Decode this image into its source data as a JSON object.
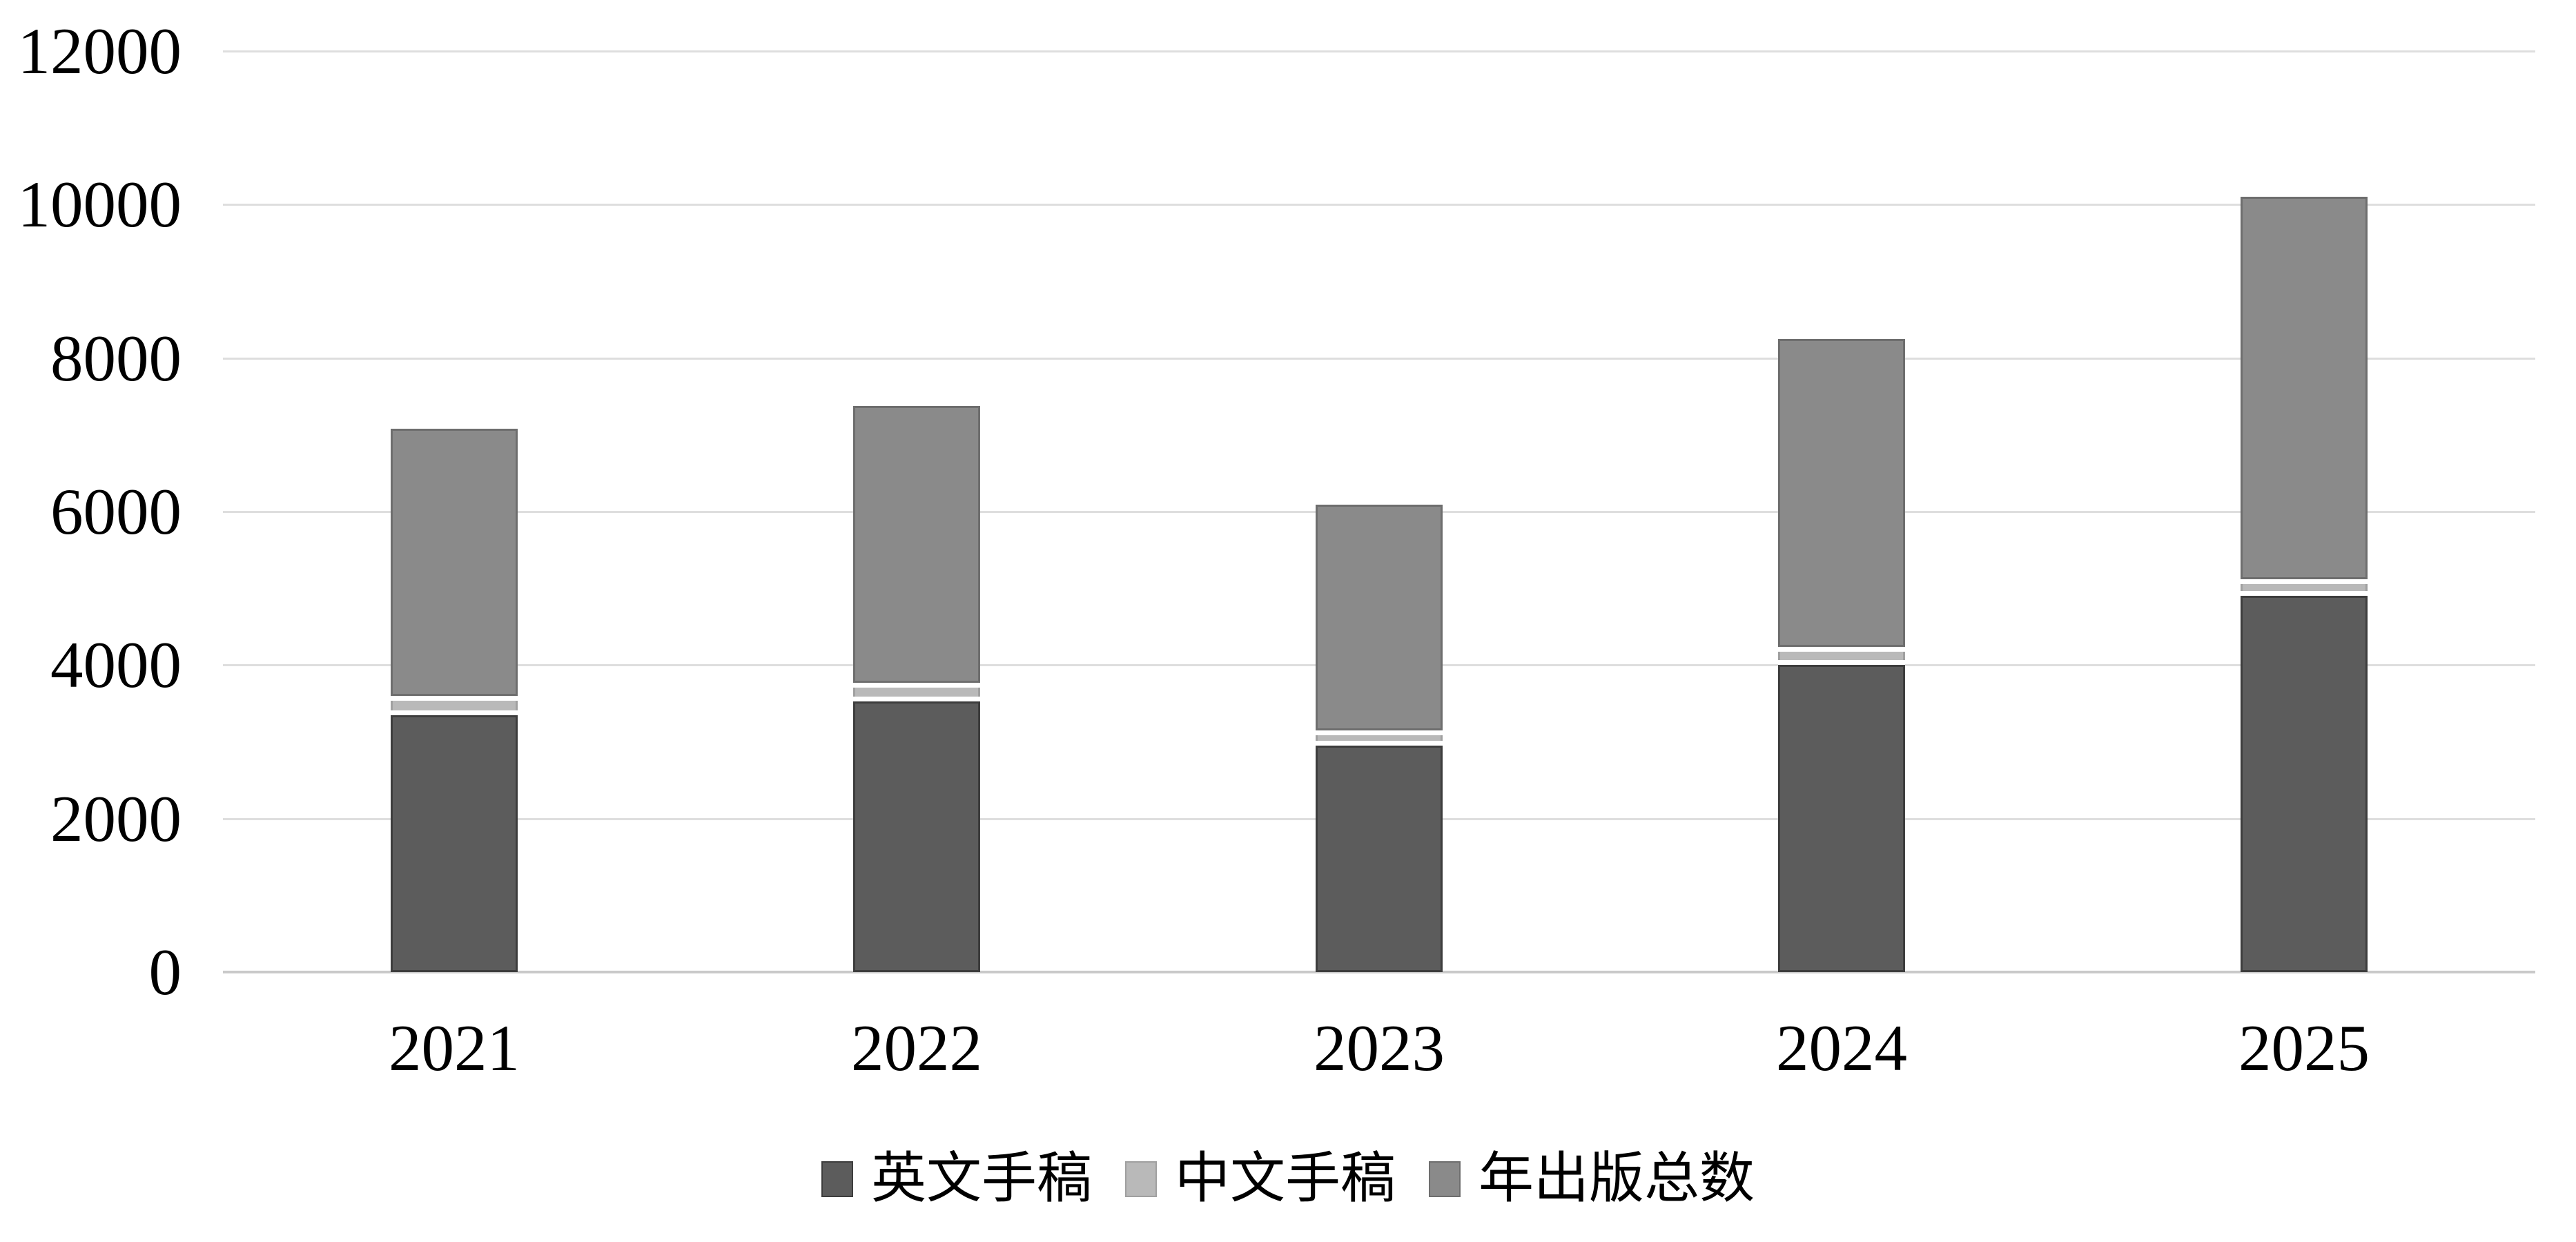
{
  "chart_data": {
    "type": "bar",
    "stacked": true,
    "title": "",
    "xlabel": "",
    "ylabel": "",
    "categories": [
      "2021",
      "2022",
      "2023",
      "2024",
      "2025"
    ],
    "series": [
      {
        "name": "英文手稿",
        "color": "#5c5c5c",
        "border_color": "#3d3d3d",
        "values": [
          3350,
          3530,
          2950,
          4000,
          4900
        ]
      },
      {
        "name": "中文手稿",
        "color": "#b9b9b9",
        "border_color": "#a0a0a0",
        "values": [
          250,
          240,
          200,
          240,
          220
        ]
      },
      {
        "name": "年出版总数",
        "color": "#8a8a8a",
        "border_color": "#6e6e6e",
        "values": [
          3480,
          3610,
          2940,
          4010,
          4980
        ]
      }
    ],
    "stacked_totals": [
      7080,
      7380,
      6090,
      8250,
      10100
    ],
    "ylim": [
      0,
      12000
    ],
    "ytick_interval": 2000,
    "ytick_labels": [
      "0",
      "2000",
      "4000",
      "6000",
      "8000",
      "10000",
      "12000"
    ],
    "grid": true,
    "legend_position": "bottom"
  },
  "styles": {
    "background_color": "#ffffff",
    "gridline_color": "#dedede",
    "axis_line_color": "#c9c9c9",
    "text_color": "#000000",
    "segment_gap_color": "#ffffff"
  }
}
